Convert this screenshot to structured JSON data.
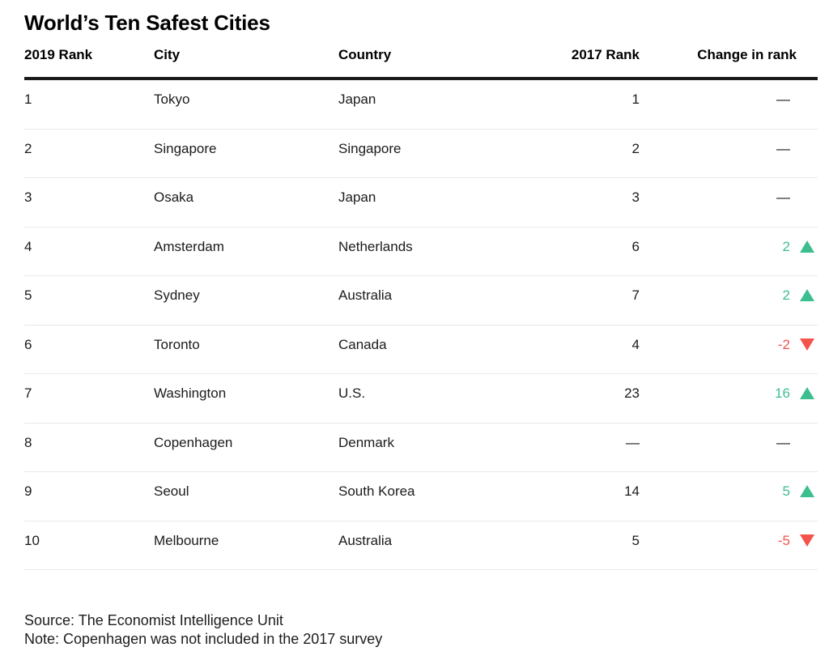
{
  "chart_data": {
    "type": "table",
    "title": "World’s Ten Safest Cities",
    "columns": [
      "2019 Rank",
      "City",
      "Country",
      "2017 Rank",
      "Change in rank"
    ],
    "rows": [
      {
        "rank2019": "1",
        "city": "Tokyo",
        "country": "Japan",
        "rank2017": "1",
        "change": "—",
        "direction": "none"
      },
      {
        "rank2019": "2",
        "city": "Singapore",
        "country": "Singapore",
        "rank2017": "2",
        "change": "—",
        "direction": "none"
      },
      {
        "rank2019": "3",
        "city": "Osaka",
        "country": "Japan",
        "rank2017": "3",
        "change": "—",
        "direction": "none"
      },
      {
        "rank2019": "4",
        "city": "Amsterdam",
        "country": "Netherlands",
        "rank2017": "6",
        "change": "2",
        "direction": "up"
      },
      {
        "rank2019": "5",
        "city": "Sydney",
        "country": "Australia",
        "rank2017": "7",
        "change": "2",
        "direction": "up"
      },
      {
        "rank2019": "6",
        "city": "Toronto",
        "country": "Canada",
        "rank2017": "4",
        "change": "-2",
        "direction": "down"
      },
      {
        "rank2019": "7",
        "city": "Washington",
        "country": "U.S.",
        "rank2017": "23",
        "change": "16",
        "direction": "up"
      },
      {
        "rank2019": "8",
        "city": "Copenhagen",
        "country": "Denmark",
        "rank2017": "—",
        "change": "—",
        "direction": "none"
      },
      {
        "rank2019": "9",
        "city": "Seoul",
        "country": "South Korea",
        "rank2017": "14",
        "change": "5",
        "direction": "up"
      },
      {
        "rank2019": "10",
        "city": "Melbourne",
        "country": "Australia",
        "rank2017": "5",
        "change": "-5",
        "direction": "down"
      }
    ],
    "source": "Source: The Economist Intelligence Unit",
    "note": "Note: Copenhagen was not included in the 2017 survey"
  },
  "colors": {
    "positive": "#3dbe8e",
    "negative": "#f4534b",
    "text": "#1b1b1b",
    "title": "#000000",
    "rule": "#1a1a1a",
    "separator": "#e9e9e9"
  }
}
